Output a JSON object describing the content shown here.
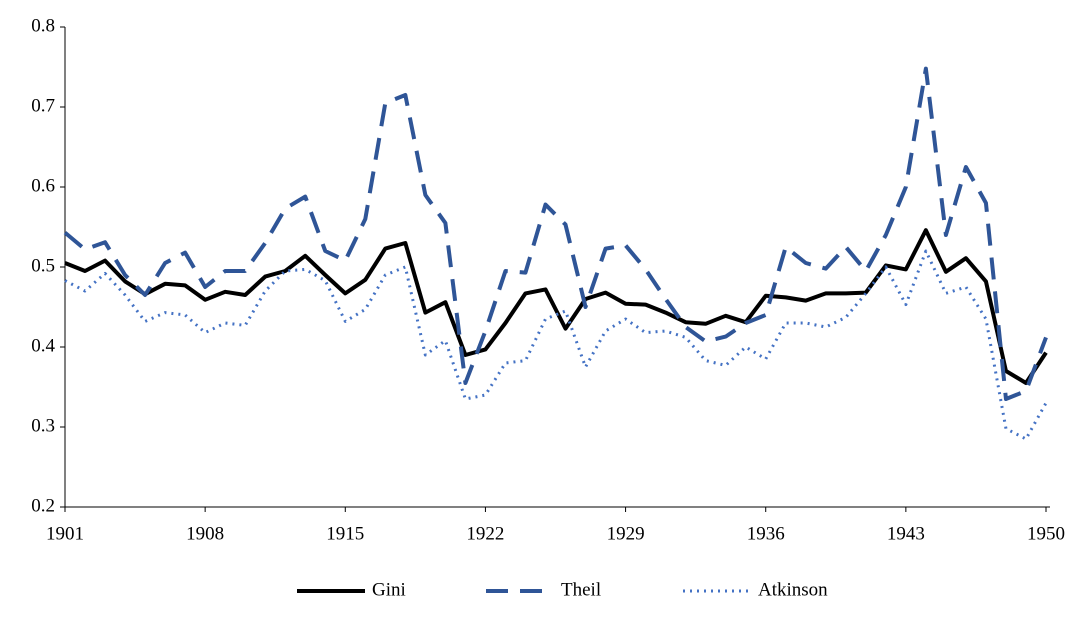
{
  "chart_data": {
    "type": "line",
    "x": [
      1901,
      1902,
      1903,
      1904,
      1905,
      1906,
      1907,
      1908,
      1909,
      1910,
      1911,
      1912,
      1913,
      1914,
      1915,
      1916,
      1917,
      1918,
      1919,
      1920,
      1921,
      1922,
      1923,
      1924,
      1925,
      1926,
      1927,
      1928,
      1929,
      1930,
      1931,
      1932,
      1933,
      1934,
      1935,
      1936,
      1937,
      1938,
      1939,
      1940,
      1941,
      1942,
      1943,
      1944,
      1945,
      1946,
      1947,
      1948,
      1949,
      1950
    ],
    "series": [
      {
        "name": "Gini",
        "color": "#000000",
        "dash": "solid",
        "values": [
          0.505,
          0.495,
          0.508,
          0.482,
          0.466,
          0.479,
          0.477,
          0.459,
          0.469,
          0.465,
          0.488,
          0.495,
          0.514,
          0.49,
          0.467,
          0.484,
          0.523,
          0.53,
          0.443,
          0.456,
          0.39,
          0.397,
          0.43,
          0.467,
          0.472,
          0.423,
          0.46,
          0.468,
          0.454,
          0.453,
          0.443,
          0.431,
          0.429,
          0.439,
          0.431,
          0.464,
          0.462,
          0.458,
          0.467,
          0.467,
          0.468,
          0.502,
          0.497,
          0.546,
          0.494,
          0.511,
          0.482,
          0.37,
          0.355,
          0.393
        ]
      },
      {
        "name": "Theil",
        "color": "#2f5597",
        "dash": "dashed",
        "values": [
          0.543,
          0.522,
          0.531,
          0.49,
          0.465,
          0.505,
          0.518,
          0.475,
          0.495,
          0.495,
          0.53,
          0.573,
          0.588,
          0.52,
          0.508,
          0.56,
          0.705,
          0.715,
          0.59,
          0.555,
          0.355,
          0.42,
          0.495,
          0.493,
          0.578,
          0.553,
          0.45,
          0.523,
          0.527,
          0.497,
          0.46,
          0.425,
          0.407,
          0.413,
          0.43,
          0.44,
          0.525,
          0.505,
          0.498,
          0.525,
          0.495,
          0.54,
          0.6,
          0.748,
          0.54,
          0.625,
          0.58,
          0.335,
          0.345,
          0.412
        ]
      },
      {
        "name": "Atkinson",
        "color": "#4472c4",
        "dash": "dotted",
        "values": [
          0.483,
          0.47,
          0.492,
          0.465,
          0.432,
          0.443,
          0.44,
          0.418,
          0.43,
          0.427,
          0.47,
          0.495,
          0.497,
          0.483,
          0.432,
          0.447,
          0.49,
          0.5,
          0.39,
          0.408,
          0.335,
          0.34,
          0.38,
          0.383,
          0.435,
          0.445,
          0.375,
          0.42,
          0.435,
          0.418,
          0.42,
          0.412,
          0.383,
          0.377,
          0.4,
          0.385,
          0.43,
          0.43,
          0.425,
          0.437,
          0.467,
          0.5,
          0.453,
          0.52,
          0.467,
          0.475,
          0.435,
          0.298,
          0.285,
          0.33
        ]
      }
    ],
    "xlim": [
      1901,
      1950
    ],
    "xticks": [
      1901,
      1908,
      1915,
      1922,
      1929,
      1936,
      1943,
      1950
    ],
    "ylim": [
      0.2,
      0.8
    ],
    "yticks": [
      0.2,
      0.3,
      0.4,
      0.5,
      0.6,
      0.7,
      0.8
    ],
    "grid": false,
    "legend": "bottom"
  }
}
